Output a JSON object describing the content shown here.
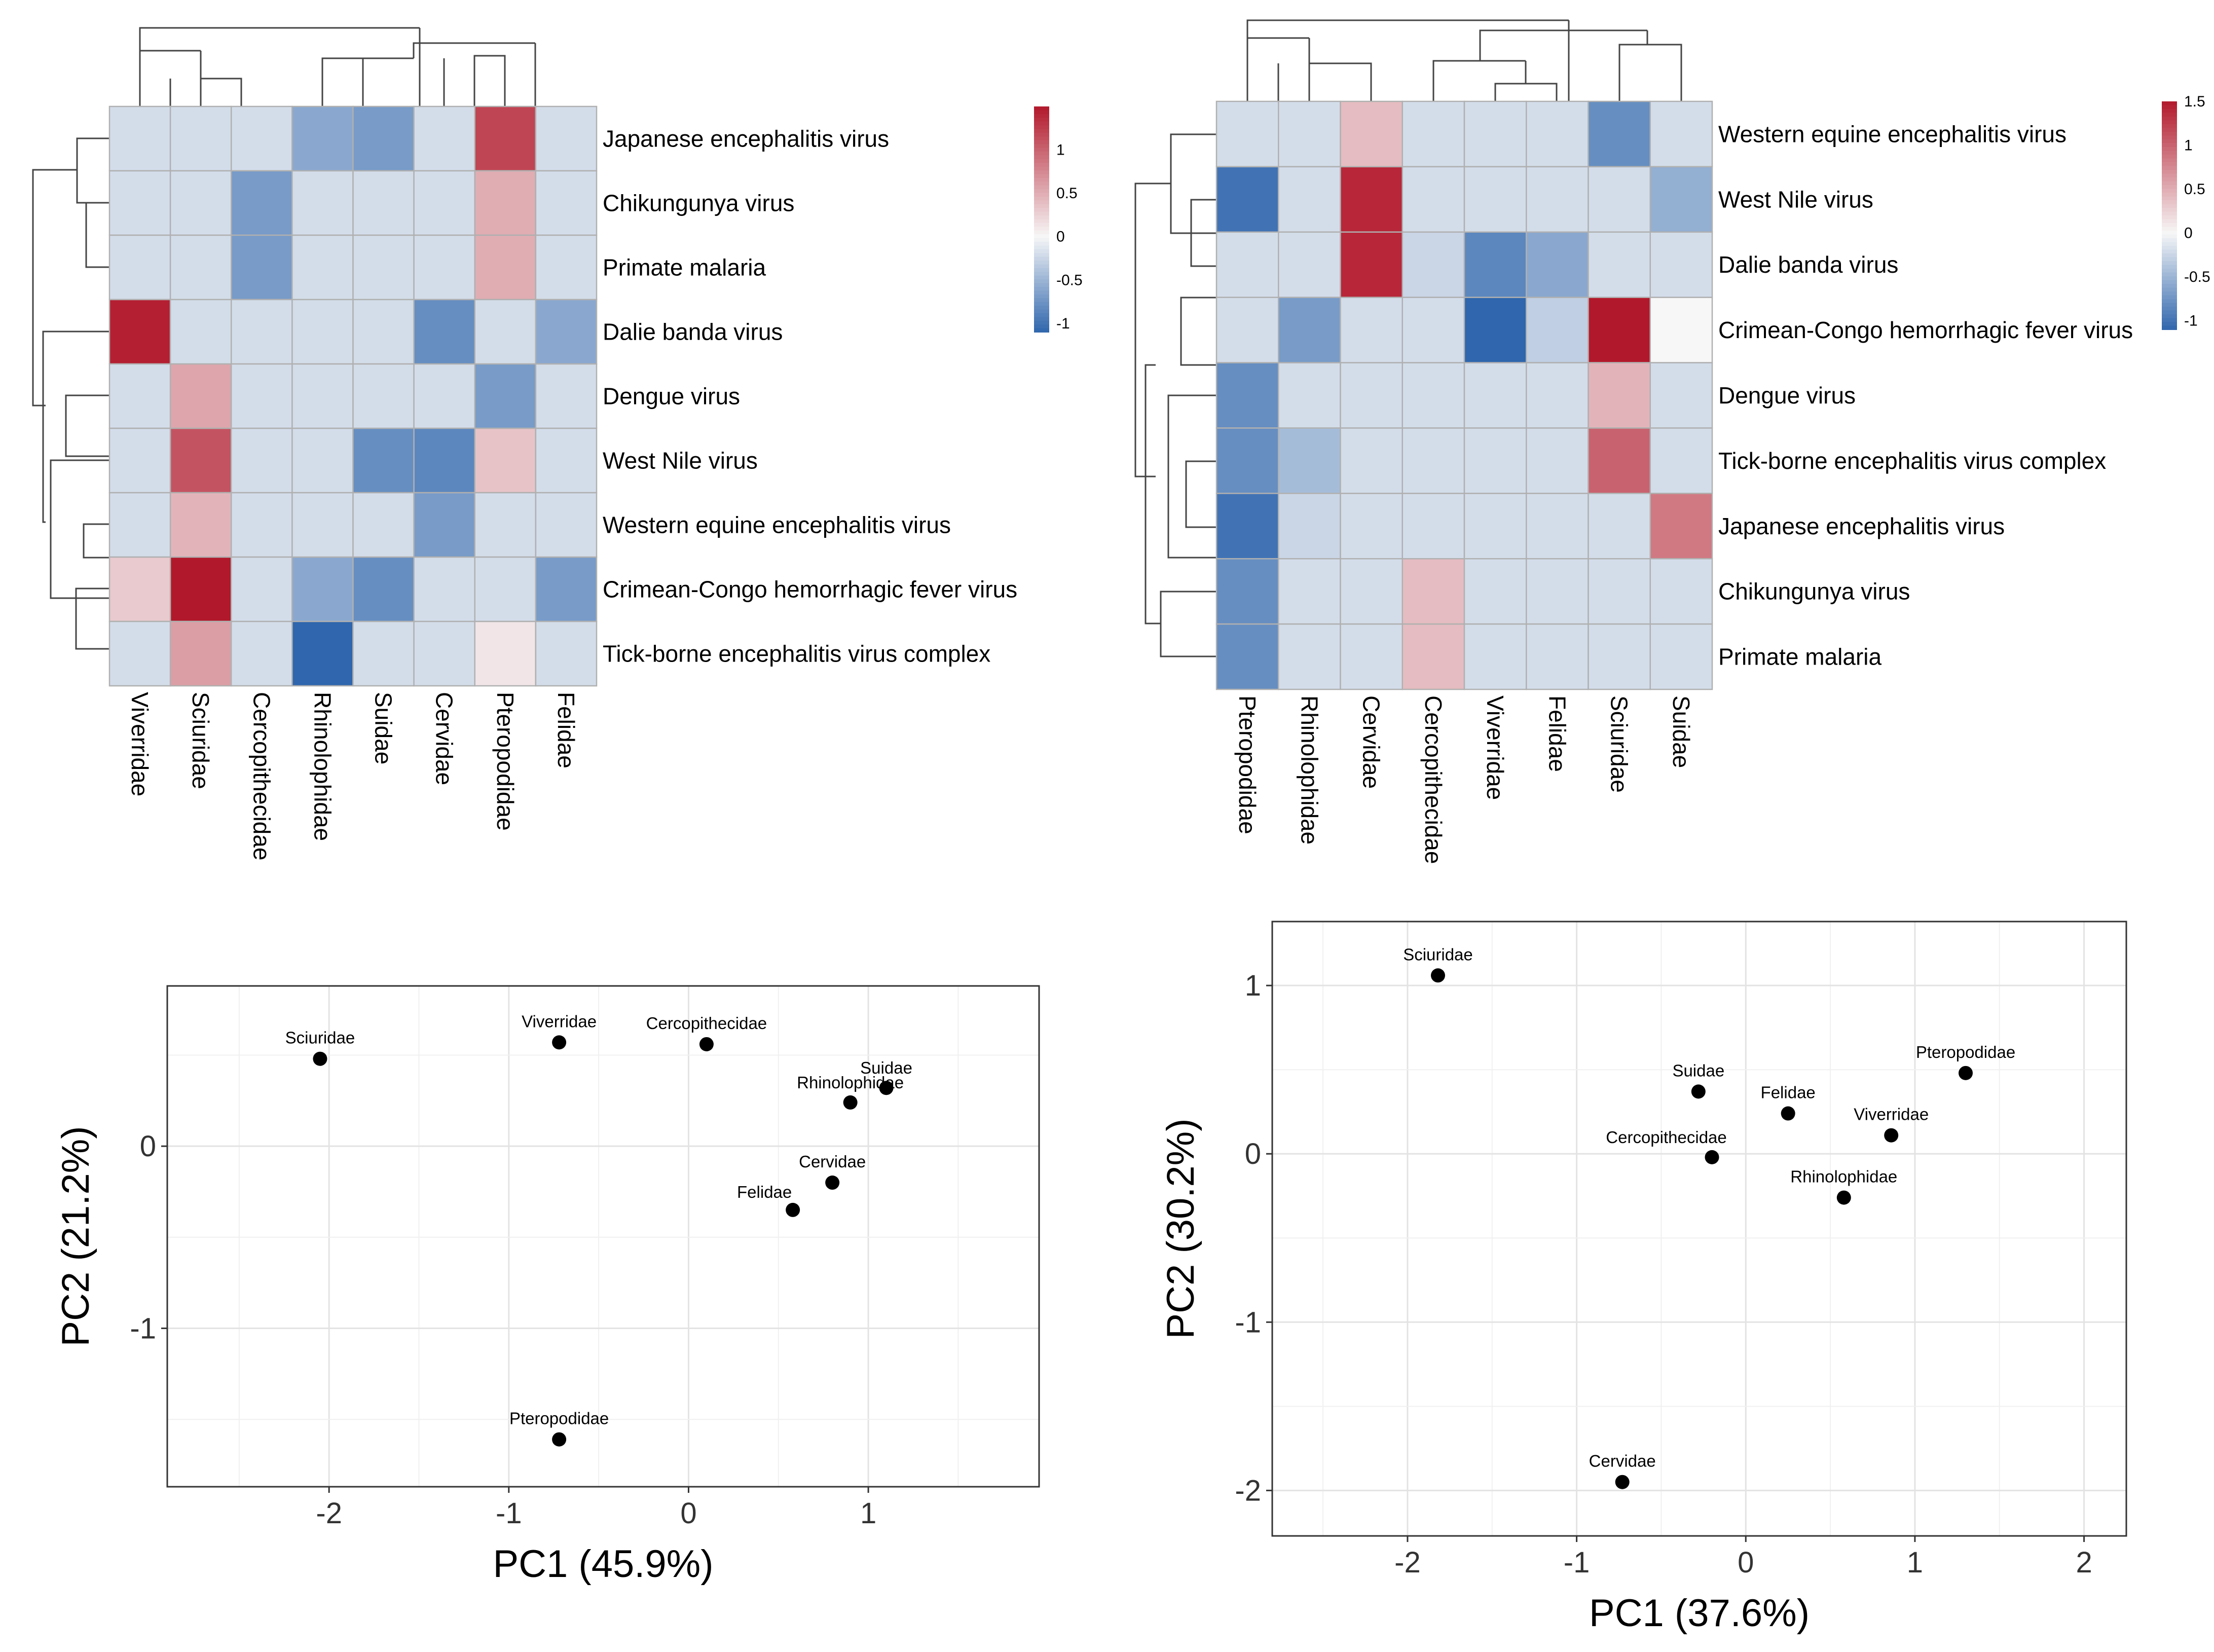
{
  "chart_data": [
    {
      "type": "heatmap",
      "title": "",
      "columns": [
        "Viverridae",
        "Sciuridae",
        "Cercopithecidae",
        "Rhinolophidae",
        "Suidae",
        "Cervidae",
        "Pteropodidae",
        "Felidae"
      ],
      "rows": [
        "Japanese encephalitis virus",
        "Chikungunya virus",
        "Primate malaria",
        "Dalie banda virus",
        "Dengue virus",
        "West Nile virus",
        "Western equine encephalitis virus",
        "Crimean-Congo hemorrhagic fever virus",
        "Tick-borne encephalitis virus complex"
      ],
      "values": [
        [
          -0.2,
          -0.2,
          -0.2,
          -0.6,
          -0.7,
          -0.2,
          1.2,
          -0.2
        ],
        [
          -0.2,
          -0.2,
          -0.7,
          -0.2,
          -0.2,
          -0.2,
          0.5,
          -0.2
        ],
        [
          -0.2,
          -0.2,
          -0.7,
          -0.2,
          -0.2,
          -0.2,
          0.5,
          -0.2
        ],
        [
          1.45,
          -0.2,
          -0.2,
          -0.2,
          -0.2,
          -0.8,
          -0.2,
          -0.6
        ],
        [
          -0.2,
          0.55,
          -0.2,
          -0.2,
          -0.2,
          -0.2,
          -0.7,
          -0.2
        ],
        [
          -0.2,
          1.1,
          -0.2,
          -0.2,
          -0.8,
          -0.85,
          0.35,
          -0.2
        ],
        [
          -0.2,
          0.45,
          -0.2,
          -0.2,
          -0.2,
          -0.7,
          -0.2,
          -0.2
        ],
        [
          0.3,
          1.5,
          -0.2,
          -0.6,
          -0.8,
          -0.2,
          -0.2,
          -0.7
        ],
        [
          -0.2,
          0.6,
          -0.2,
          -1.1,
          -0.2,
          -0.2,
          0.12,
          -0.2
        ]
      ],
      "legend": {
        "ticks": [
          1,
          0.5,
          0,
          -0.5,
          -1
        ],
        "tick_labels": [
          "1",
          "0.5",
          "0",
          "-0.5",
          "-1"
        ],
        "range": [
          -1.1,
          1.5
        ]
      },
      "colors": {
        "low": "#2f66ad",
        "mid": "#f7f7f7",
        "high": "#b2182b",
        "border": "#b0b0b0"
      }
    },
    {
      "type": "heatmap",
      "title": "",
      "columns": [
        "Pteropodidae",
        "Rhinolophidae",
        "Cervidae",
        "Cercopithecidae",
        "Viverridae",
        "Felidae",
        "Sciuridae",
        "Suidae"
      ],
      "rows": [
        "Western equine encephalitis virus",
        "West Nile virus",
        "Dalie banda virus",
        "Crimean-Congo hemorrhagic fever virus",
        "Dengue virus",
        "Tick-borne encephalitis virus complex",
        "Japanese encephalitis virus",
        "Chikungunya virus",
        "Primate malaria"
      ],
      "values": [
        [
          -0.2,
          -0.2,
          0.4,
          -0.2,
          -0.2,
          -0.2,
          -0.8,
          -0.2
        ],
        [
          -1.0,
          -0.2,
          1.4,
          -0.2,
          -0.2,
          -0.2,
          -0.2,
          -0.55
        ],
        [
          -0.2,
          -0.2,
          1.4,
          -0.25,
          -0.85,
          -0.6,
          -0.2,
          -0.2
        ],
        [
          -0.2,
          -0.7,
          -0.2,
          -0.2,
          -1.1,
          -0.3,
          1.5,
          0.0
        ],
        [
          -0.8,
          -0.2,
          -0.2,
          -0.2,
          -0.2,
          -0.2,
          0.45,
          -0.2
        ],
        [
          -0.8,
          -0.45,
          -0.2,
          -0.2,
          -0.2,
          -0.2,
          1.0,
          -0.2
        ],
        [
          -1.0,
          -0.25,
          -0.2,
          -0.2,
          -0.2,
          -0.2,
          -0.2,
          0.85
        ],
        [
          -0.8,
          -0.2,
          -0.2,
          0.4,
          -0.2,
          -0.2,
          -0.2,
          -0.2
        ],
        [
          -0.8,
          -0.2,
          -0.2,
          0.4,
          -0.2,
          -0.2,
          -0.2,
          -0.2
        ]
      ],
      "legend": {
        "ticks": [
          1.5,
          1,
          0.5,
          0,
          -0.5,
          -1
        ],
        "tick_labels": [
          "1.5",
          "1",
          "0.5",
          "0",
          "-0.5",
          "-1"
        ],
        "range": [
          -1.1,
          1.5
        ]
      },
      "colors": {
        "low": "#2f66ad",
        "mid": "#f7f7f7",
        "high": "#b2182b",
        "border": "#b0b0b0"
      }
    },
    {
      "type": "scatter",
      "xlabel": "PC1 (45.9%)",
      "ylabel": "PC2 (21.2%)",
      "xlim": [
        -2.9,
        1.95
      ],
      "ylim": [
        -1.87,
        0.88
      ],
      "xticks": [
        -2,
        -1,
        0,
        1
      ],
      "xtick_labels": [
        "-2",
        "-1",
        "0",
        "1"
      ],
      "yticks": [
        0,
        -1
      ],
      "ytick_labels": [
        "0",
        "-1"
      ],
      "points": [
        {
          "label": "Sciuridae",
          "x": -2.05,
          "y": 0.48
        },
        {
          "label": "Viverridae",
          "x": -0.72,
          "y": 0.57
        },
        {
          "label": "Cercopithecidae",
          "x": 0.1,
          "y": 0.56
        },
        {
          "label": "Suidae",
          "x": 1.1,
          "y": 0.32
        },
        {
          "label": "Rhinolophidae",
          "x": 0.9,
          "y": 0.24
        },
        {
          "label": "Cervidae",
          "x": 0.8,
          "y": -0.2
        },
        {
          "label": "Felidae",
          "x": 0.58,
          "y": -0.35
        },
        {
          "label": "Pteropodidae",
          "x": -0.72,
          "y": -1.61
        }
      ]
    },
    {
      "type": "scatter",
      "xlabel": "PC1 (37.6%)",
      "ylabel": "PC2 (30.2%)",
      "xlim": [
        -2.8,
        2.25
      ],
      "ylim": [
        -2.27,
        1.38
      ],
      "xticks": [
        -2,
        -1,
        0,
        1,
        2
      ],
      "xtick_labels": [
        "-2",
        "-1",
        "0",
        "1",
        "2"
      ],
      "yticks": [
        1,
        0,
        -1,
        -2
      ],
      "ytick_labels": [
        "1",
        "0",
        "-1",
        "-2"
      ],
      "points": [
        {
          "label": "Sciuridae",
          "x": -1.82,
          "y": 1.06
        },
        {
          "label": "Suidae",
          "x": -0.28,
          "y": 0.37
        },
        {
          "label": "Felidae",
          "x": 0.25,
          "y": 0.24
        },
        {
          "label": "Pteropodidae",
          "x": 1.3,
          "y": 0.48
        },
        {
          "label": "Viverridae",
          "x": 0.86,
          "y": 0.11
        },
        {
          "label": "Cercopithecidae",
          "x": -0.2,
          "y": -0.02
        },
        {
          "label": "Rhinolophidae",
          "x": 0.58,
          "y": -0.26
        },
        {
          "label": "Cervidae",
          "x": -0.73,
          "y": -1.95
        }
      ]
    }
  ]
}
